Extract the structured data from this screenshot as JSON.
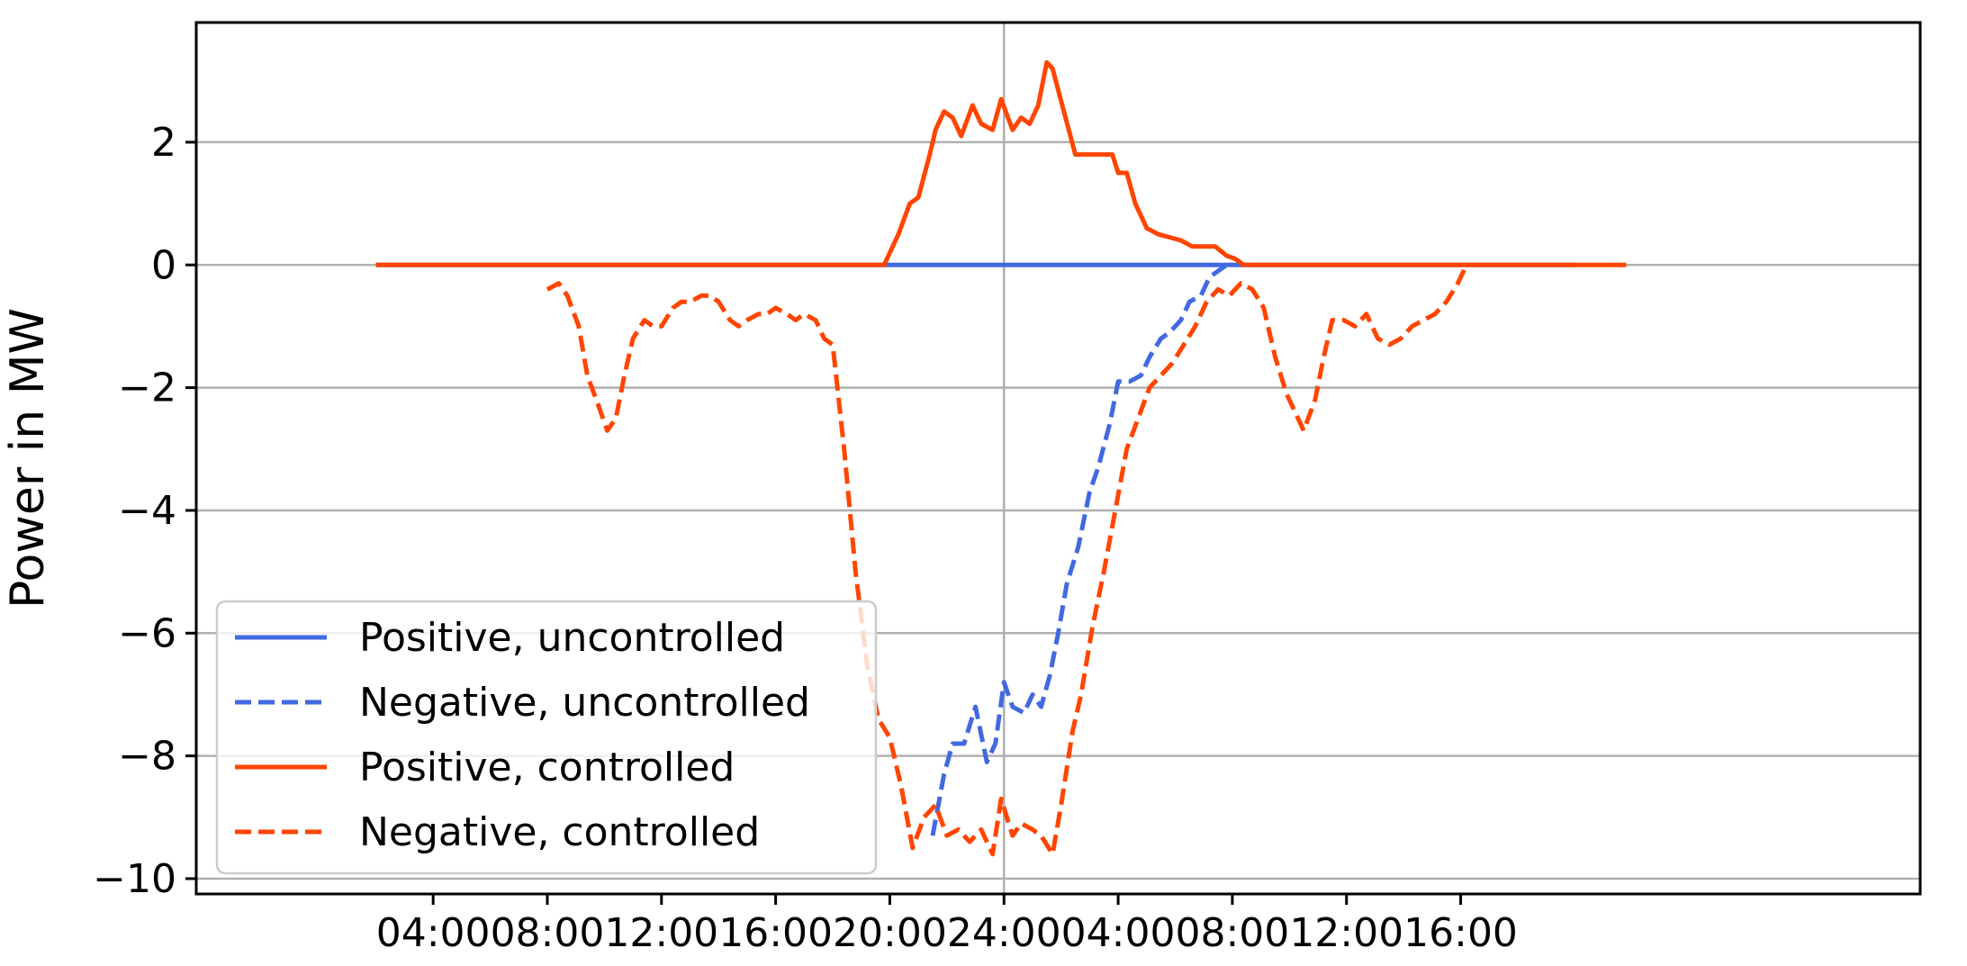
{
  "chart_data": {
    "type": "line",
    "title": "",
    "xlabel": "",
    "ylabel": "Power in MW",
    "ylim": [
      -10.25,
      3.95
    ],
    "x_unit": "hours from 00:00 of day 1",
    "xlim": [
      -4.3,
      56.1
    ],
    "x_ticks": [
      {
        "x": 4,
        "label": "04:00"
      },
      {
        "x": 8,
        "label": "08:00"
      },
      {
        "x": 12,
        "label": "12:00"
      },
      {
        "x": 16,
        "label": "16:00"
      },
      {
        "x": 20,
        "label": "20:00"
      },
      {
        "x": 24,
        "label": "24:00"
      },
      {
        "x": 28,
        "label": "04:00"
      },
      {
        "x": 32,
        "label": "08:00"
      },
      {
        "x": 36,
        "label": "12:00"
      },
      {
        "x": 40,
        "label": "16:00"
      }
    ],
    "y_ticks": [
      {
        "y": 2,
        "label": "2"
      },
      {
        "y": 0,
        "label": "0"
      },
      {
        "y": -2,
        "label": "−2"
      },
      {
        "y": -4,
        "label": "−4"
      },
      {
        "y": -6,
        "label": "−6"
      },
      {
        "y": -8,
        "label": "−8"
      },
      {
        "y": -10,
        "label": "−10"
      }
    ],
    "grid": true,
    "legend_position": "lower-left",
    "series": [
      {
        "name": "Positive, uncontrolled",
        "color": "#4169E1",
        "dash": "solid",
        "x": [
          2,
          44
        ],
        "y": [
          0,
          0
        ]
      },
      {
        "name": "Negative, uncontrolled",
        "color": "#4169E1",
        "dash": "dashed",
        "x": [
          21.5,
          21.9,
          22.2,
          22.6,
          23.0,
          23.4,
          23.7,
          24.0,
          24.3,
          24.7,
          25.0,
          25.3,
          25.6,
          25.9,
          26.2,
          26.6,
          27.0,
          27.3,
          27.7,
          28.0,
          28.4,
          28.8,
          29.1,
          29.5,
          29.8,
          30.2,
          30.5,
          30.9,
          31.2,
          31.5,
          31.8
        ],
        "y": [
          -9.3,
          -8.3,
          -7.8,
          -7.8,
          -7.2,
          -8.1,
          -7.8,
          -6.8,
          -7.2,
          -7.3,
          -7.0,
          -7.2,
          -6.7,
          -6.0,
          -5.2,
          -4.6,
          -3.7,
          -3.3,
          -2.6,
          -1.9,
          -1.9,
          -1.8,
          -1.5,
          -1.2,
          -1.1,
          -0.9,
          -0.6,
          -0.5,
          -0.2,
          -0.1,
          0
        ]
      },
      {
        "name": "Positive, controlled",
        "color": "#FF4500",
        "dash": "solid",
        "x": [
          2,
          19.8,
          20.3,
          20.7,
          21.0,
          21.4,
          21.6,
          21.9,
          22.2,
          22.5,
          22.9,
          23.2,
          23.6,
          23.9,
          24.3,
          24.6,
          24.9,
          25.2,
          25.5,
          25.7,
          26.1,
          26.5,
          26.9,
          27.2,
          27.5,
          27.8,
          28.0,
          28.3,
          28.6,
          29.0,
          29.4,
          29.8,
          30.2,
          30.6,
          31.0,
          31.4,
          31.8,
          32.1,
          32.4,
          44,
          45.8
        ],
        "y": [
          0,
          0,
          0.5,
          1.0,
          1.1,
          1.8,
          2.2,
          2.5,
          2.4,
          2.1,
          2.6,
          2.3,
          2.2,
          2.7,
          2.2,
          2.4,
          2.3,
          2.6,
          3.3,
          3.2,
          2.5,
          1.8,
          1.8,
          1.8,
          1.8,
          1.8,
          1.5,
          1.5,
          1.0,
          0.6,
          0.5,
          0.45,
          0.4,
          0.3,
          0.3,
          0.3,
          0.15,
          0.1,
          0,
          0,
          0
        ]
      },
      {
        "name": "Negative, controlled",
        "color": "#FF4500",
        "dash": "dashed",
        "x": [
          8.0,
          8.4,
          8.7,
          9.1,
          9.4,
          9.8,
          10.1,
          10.4,
          10.7,
          11.0,
          11.4,
          11.7,
          12.0,
          12.4,
          12.7,
          13.0,
          13.4,
          13.7,
          14.0,
          14.4,
          14.7,
          15.0,
          15.4,
          15.7,
          16.0,
          16.4,
          16.7,
          17.0,
          17.4,
          17.7,
          18.0,
          18.4,
          18.8,
          19.2,
          19.6,
          20.0,
          20.4,
          20.8,
          21.2,
          21.6,
          22.0,
          22.4,
          22.8,
          23.2,
          23.6,
          23.9,
          24.3,
          24.6,
          25.0,
          25.3,
          25.7,
          26.0,
          26.4,
          26.7,
          27.1,
          27.5,
          27.9,
          28.3,
          28.7,
          29.1,
          29.5,
          29.9,
          30.3,
          30.7,
          31.1,
          31.5,
          31.9,
          32.3,
          32.7,
          33.1,
          33.5,
          33.9,
          34.2,
          34.5,
          34.9,
          35.2,
          35.5,
          35.9,
          36.3,
          36.7,
          37.1,
          37.5,
          37.9,
          38.3,
          38.7,
          39.1,
          39.5,
          39.9,
          40.2
        ],
        "y": [
          -0.4,
          -0.3,
          -0.5,
          -1.0,
          -1.8,
          -2.3,
          -2.7,
          -2.5,
          -1.8,
          -1.2,
          -0.9,
          -1.0,
          -1.0,
          -0.7,
          -0.6,
          -0.6,
          -0.5,
          -0.5,
          -0.6,
          -0.9,
          -1.0,
          -0.9,
          -0.8,
          -0.8,
          -0.7,
          -0.8,
          -0.9,
          -0.8,
          -0.9,
          -1.2,
          -1.3,
          -3.0,
          -5.0,
          -6.5,
          -7.4,
          -7.7,
          -8.5,
          -9.5,
          -9.0,
          -8.8,
          -9.3,
          -9.2,
          -9.4,
          -9.2,
          -9.6,
          -8.7,
          -9.3,
          -9.1,
          -9.2,
          -9.3,
          -9.6,
          -8.8,
          -7.6,
          -7.0,
          -5.9,
          -5.0,
          -4.0,
          -3.0,
          -2.5,
          -2.0,
          -1.8,
          -1.6,
          -1.3,
          -1.0,
          -0.6,
          -0.4,
          -0.5,
          -0.3,
          -0.4,
          -0.7,
          -1.5,
          -2.1,
          -2.4,
          -2.7,
          -2.2,
          -1.5,
          -0.9,
          -0.9,
          -1.0,
          -0.8,
          -1.2,
          -1.3,
          -1.2,
          -1.0,
          -0.9,
          -0.8,
          -0.6,
          -0.3,
          0
        ]
      }
    ]
  }
}
